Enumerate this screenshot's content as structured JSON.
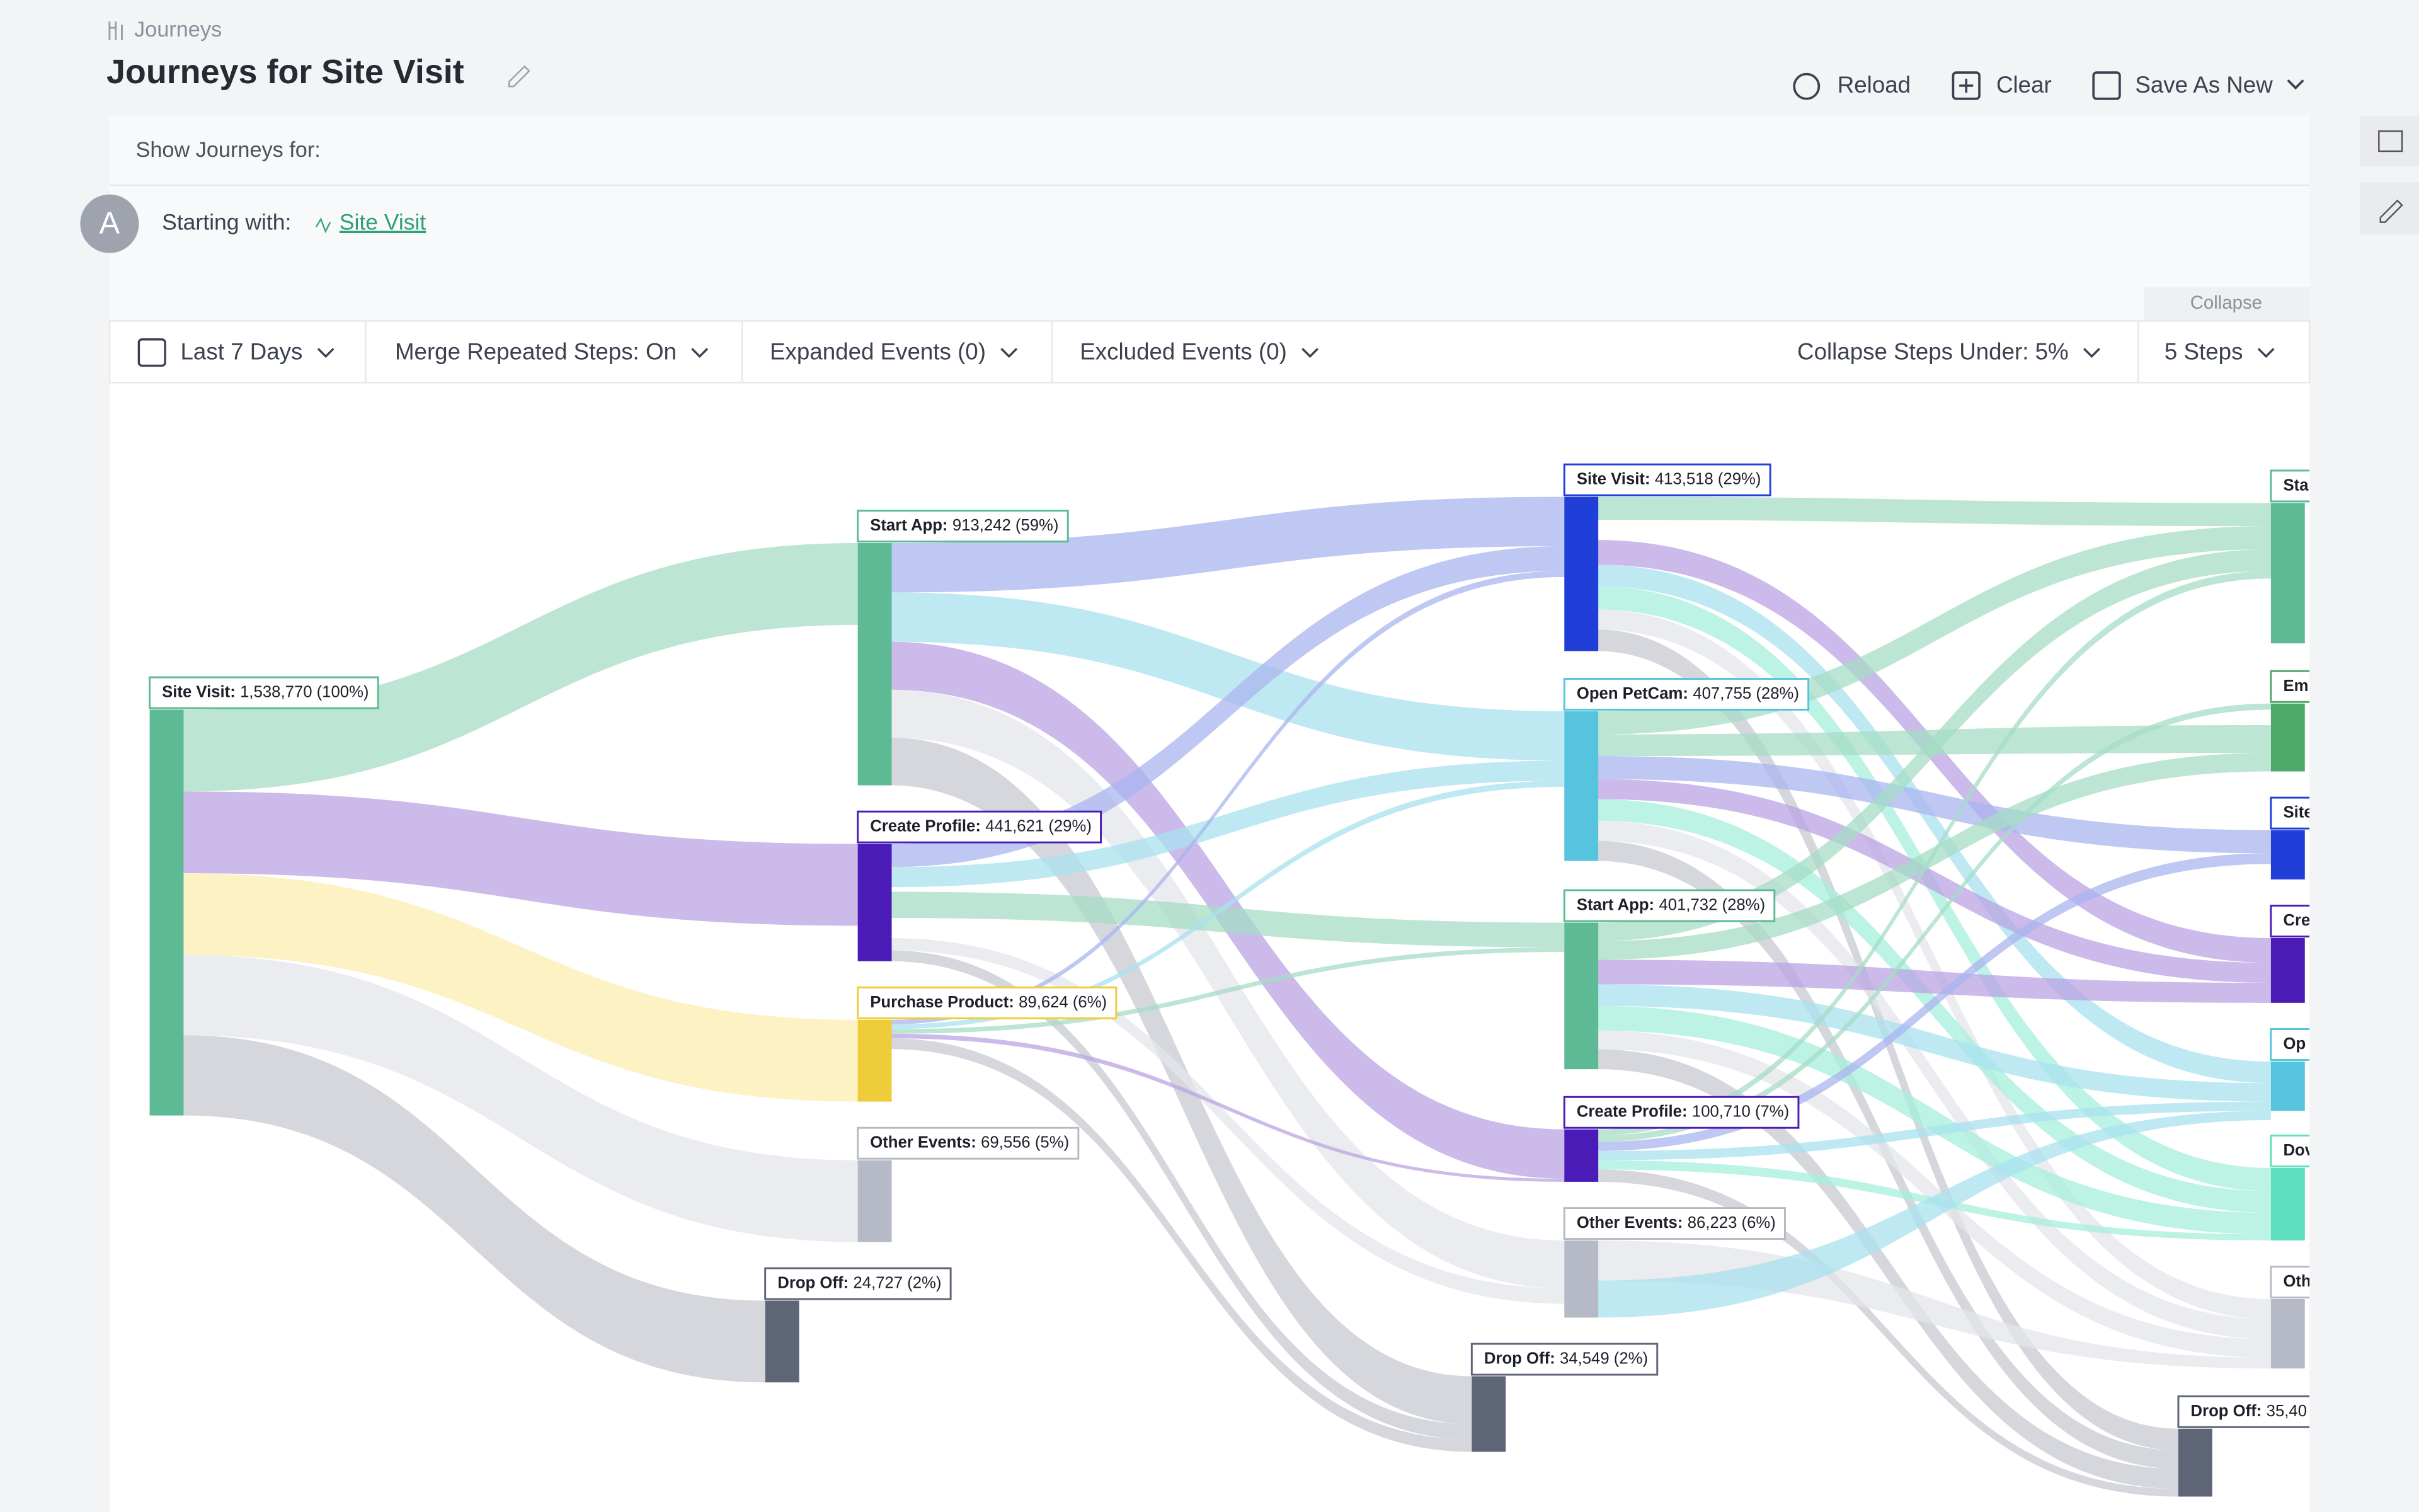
{
  "breadcrumb": "Journeys",
  "title": "Journeys for Site Visit",
  "actions": [
    "Reload",
    "Clear",
    "Save As New"
  ],
  "show_label": "Show Journeys for:",
  "avatar": "A",
  "starting_label": "Starting with:",
  "starting_event": "Site Visit",
  "collapse_tab": "Collapse",
  "toolbar": [
    "Last 7 Days",
    "Merge Repeated Steps: On",
    "Expanded Events (0)",
    "Excluded Events (0)",
    "Collapse Steps Under: 5%",
    "5 Steps"
  ],
  "nodes": [
    {
      "name": "Site Visit:",
      "stat": "1,538,770 (100%)"
    },
    {
      "name": "Start App:",
      "stat": "913,242 (59%)"
    },
    {
      "name": "Create Profile:",
      "stat": "441,621 (29%)"
    },
    {
      "name": "Purchase Product:",
      "stat": "89,624 (6%)"
    },
    {
      "name": "Other Events:",
      "stat": "69,556 (5%)"
    },
    {
      "name": "Drop Off:",
      "stat": "24,727 (2%)"
    },
    {
      "name": "Site Visit:",
      "stat": "413,518 (29%)"
    },
    {
      "name": "Open PetCam:",
      "stat": "407,755 (28%)"
    },
    {
      "name": "Start App:",
      "stat": "401,732 (28%)"
    },
    {
      "name": "Create Profile:",
      "stat": "100,710 (7%)"
    },
    {
      "name": "Other Events:",
      "stat": "86,223 (6%)"
    },
    {
      "name": "Drop Off:",
      "stat": "34,549 (2%)"
    },
    {
      "name": "Sta"
    },
    {
      "name": "Em"
    },
    {
      "name": "Site"
    },
    {
      "name": "Cre"
    },
    {
      "name": "Op"
    },
    {
      "name": "Dov"
    },
    {
      "name": "Oth"
    },
    {
      "name": "Drop Off:",
      "stat": "35,40"
    }
  ]
}
